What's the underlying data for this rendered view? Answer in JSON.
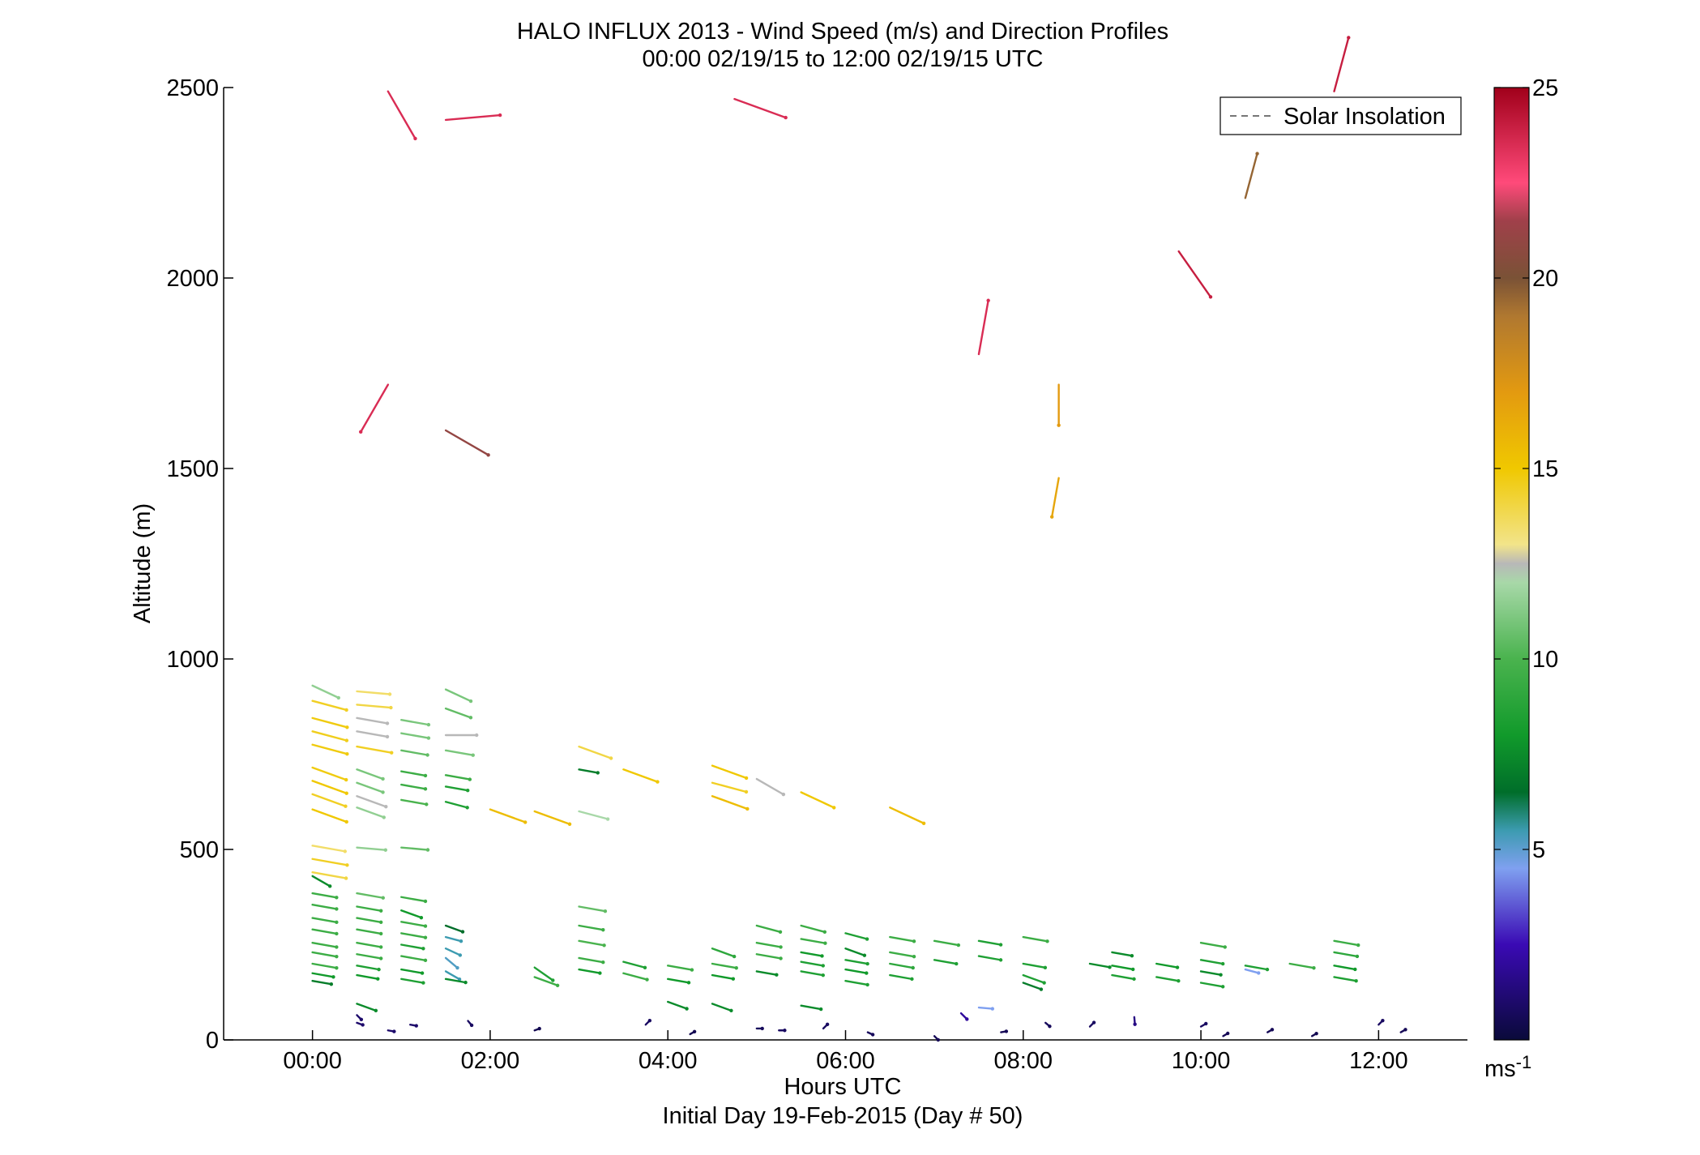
{
  "chart_data": {
    "type": "wind_barb_profile",
    "title": "HALO INFLUX 2013 - Wind Speed (m/s) and Direction Profiles",
    "subtitle": "00:00 02/19/15 to 12:00 02/19/15  UTC",
    "xlabel": "Hours UTC",
    "xlabel2": "Initial Day 19-Feb-2015 (Day # 50)",
    "ylabel": "Altitude (m)",
    "xlim": [
      -1,
      13
    ],
    "ylim": [
      0,
      2500
    ],
    "x_ticks": [
      0,
      2,
      4,
      6,
      8,
      10,
      12
    ],
    "x_tick_labels": [
      "00:00",
      "02:00",
      "04:00",
      "06:00",
      "08:00",
      "10:00",
      "12:00"
    ],
    "y_ticks": [
      0,
      500,
      1000,
      1500,
      2000,
      2500
    ],
    "y_tick_labels": [
      "0",
      "500",
      "1000",
      "1500",
      "2000",
      "2500"
    ],
    "legend": {
      "entries": [
        "Solar Insolation"
      ],
      "position": "top-right",
      "style": "dashed-gray"
    },
    "colorbar": {
      "min": 0,
      "max": 25,
      "ticks": [
        5,
        10,
        15,
        20,
        25
      ],
      "tick_labels": [
        "5",
        "10",
        "15",
        "20",
        "25"
      ],
      "unit_label": "ms",
      "unit_exp": "-1",
      "stops": [
        {
          "v": 0,
          "color": "#0a0a3a"
        },
        {
          "v": 2.5,
          "color": "#3a0ab4"
        },
        {
          "v": 4.5,
          "color": "#7fa0f0"
        },
        {
          "v": 5.5,
          "color": "#3c9bb0"
        },
        {
          "v": 6.5,
          "color": "#006e2a"
        },
        {
          "v": 8,
          "color": "#119a2b"
        },
        {
          "v": 10,
          "color": "#4ab34e"
        },
        {
          "v": 12,
          "color": "#a8d8a8"
        },
        {
          "v": 12.5,
          "color": "#b8b8b8"
        },
        {
          "v": 13,
          "color": "#f2e48a"
        },
        {
          "v": 15,
          "color": "#f0c800"
        },
        {
          "v": 17,
          "color": "#e39a10"
        },
        {
          "v": 19,
          "color": "#b07830"
        },
        {
          "v": 20,
          "color": "#7a5236"
        },
        {
          "v": 21.5,
          "color": "#a0404a"
        },
        {
          "v": 22.5,
          "color": "#ff4a7a"
        },
        {
          "v": 25,
          "color": "#a0001a"
        }
      ]
    },
    "arrow_spec": "each barb: [time_hours, altitude_m, speed_ms, direction_deg_toward]",
    "barbs": [
      [
        0,
        930,
        11.5,
        115
      ],
      [
        0,
        890,
        14.5,
        105
      ],
      [
        0,
        845,
        14.8,
        105
      ],
      [
        0,
        810,
        14.6,
        105
      ],
      [
        0,
        775,
        14.8,
        105
      ],
      [
        0,
        715,
        14.8,
        110
      ],
      [
        0,
        680,
        15,
        110
      ],
      [
        0,
        645,
        14.5,
        110
      ],
      [
        0,
        605,
        15,
        110
      ],
      [
        0,
        510,
        13.5,
        100
      ],
      [
        0,
        475,
        14.5,
        100
      ],
      [
        0,
        440,
        14,
        100
      ],
      [
        0,
        430,
        7.5,
        120
      ],
      [
        0,
        385,
        9.5,
        100
      ],
      [
        0,
        355,
        9.5,
        100
      ],
      [
        0,
        320,
        9.5,
        100
      ],
      [
        0,
        290,
        9.5,
        100
      ],
      [
        0,
        255,
        9.5,
        100
      ],
      [
        0,
        230,
        9.5,
        100
      ],
      [
        0,
        200,
        9.5,
        100
      ],
      [
        0,
        175,
        8,
        100
      ],
      [
        0,
        155,
        7,
        100
      ],
      [
        0.5,
        65,
        1,
        135
      ],
      [
        0.5,
        915,
        13.5,
        95
      ],
      [
        0.5,
        880,
        14,
        95
      ],
      [
        0.5,
        845,
        12.5,
        100
      ],
      [
        0.5,
        810,
        12.5,
        100
      ],
      [
        0.5,
        770,
        14.5,
        100
      ],
      [
        0.5,
        710,
        11,
        110
      ],
      [
        0.5,
        675,
        11,
        110
      ],
      [
        0.5,
        640,
        12.5,
        110
      ],
      [
        0.5,
        610,
        11.5,
        110
      ],
      [
        0.5,
        505,
        11.5,
        95
      ],
      [
        0.5,
        385,
        10.5,
        100
      ],
      [
        0.5,
        350,
        9.5,
        100
      ],
      [
        0.5,
        320,
        9.5,
        100
      ],
      [
        0.5,
        290,
        9.5,
        100
      ],
      [
        0.5,
        255,
        9.5,
        100
      ],
      [
        0.5,
        225,
        9.5,
        100
      ],
      [
        0.5,
        195,
        8.5,
        100
      ],
      [
        0.5,
        170,
        8,
        100
      ],
      [
        0.5,
        95,
        7.5,
        110
      ],
      [
        0.5,
        45,
        1,
        110
      ],
      [
        0.85,
        2490,
        23.5,
        150
      ],
      [
        0.85,
        1720,
        23.5,
        210
      ],
      [
        0.85,
        25,
        1,
        100
      ],
      [
        1,
        840,
        11,
        100
      ],
      [
        1,
        805,
        11,
        100
      ],
      [
        1,
        760,
        10.5,
        100
      ],
      [
        1,
        705,
        9.5,
        100
      ],
      [
        1,
        670,
        9.5,
        100
      ],
      [
        1,
        630,
        10,
        100
      ],
      [
        1,
        505,
        10.5,
        95
      ],
      [
        1,
        375,
        9.5,
        100
      ],
      [
        1,
        340,
        8,
        110
      ],
      [
        1,
        310,
        9.5,
        100
      ],
      [
        1,
        280,
        9.5,
        100
      ],
      [
        1,
        250,
        8.5,
        100
      ],
      [
        1,
        220,
        9.5,
        100
      ],
      [
        1,
        185,
        8,
        100
      ],
      [
        1,
        160,
        8.5,
        100
      ],
      [
        1.1,
        40,
        1,
        100
      ],
      [
        1.5,
        2415,
        23.5,
        85
      ],
      [
        1.5,
        1600,
        21,
        120
      ],
      [
        1.5,
        920,
        11,
        115
      ],
      [
        1.5,
        870,
        10.5,
        110
      ],
      [
        1.5,
        800,
        12.5,
        90
      ],
      [
        1.5,
        760,
        11,
        100
      ],
      [
        1.5,
        695,
        9.5,
        100
      ],
      [
        1.5,
        665,
        8.5,
        100
      ],
      [
        1.5,
        625,
        8.5,
        105
      ],
      [
        1.5,
        300,
        6.5,
        110
      ],
      [
        1.5,
        270,
        5.5,
        105
      ],
      [
        1.5,
        240,
        5.5,
        115
      ],
      [
        1.5,
        215,
        5.2,
        130
      ],
      [
        1.5,
        180,
        5.5,
        120
      ],
      [
        1.5,
        160,
        7.5,
        100
      ],
      [
        1.75,
        50,
        0.8,
        140
      ],
      [
        2,
        605,
        15.5,
        110
      ],
      [
        2.5,
        600,
        15.5,
        110
      ],
      [
        2.5,
        190,
        8.5,
        125
      ],
      [
        2.5,
        165,
        9.5,
        110
      ],
      [
        2.5,
        25,
        0.5,
        70
      ],
      [
        3,
        770,
        14,
        110
      ],
      [
        3,
        710,
        7,
        100
      ],
      [
        3,
        600,
        12,
        105
      ],
      [
        3,
        350,
        10.5,
        100
      ],
      [
        3,
        300,
        9.5,
        100
      ],
      [
        3,
        260,
        10,
        100
      ],
      [
        3,
        215,
        9.5,
        100
      ],
      [
        3,
        185,
        8,
        100
      ],
      [
        3.5,
        710,
        15,
        110
      ],
      [
        3.5,
        205,
        8.5,
        105
      ],
      [
        3.5,
        175,
        9.5,
        105
      ],
      [
        4,
        195,
        9.5,
        100
      ],
      [
        4,
        160,
        8,
        100
      ],
      [
        4,
        100,
        7.5,
        110
      ],
      [
        3.75,
        40,
        0.8,
        45
      ],
      [
        4.25,
        15,
        0.5,
        60
      ],
      [
        4.5,
        720,
        15,
        110
      ],
      [
        4.5,
        675,
        14.5,
        105
      ],
      [
        4.5,
        640,
        15.5,
        110
      ],
      [
        4.5,
        240,
        9,
        110
      ],
      [
        4.5,
        200,
        9.5,
        100
      ],
      [
        4.5,
        170,
        8,
        100
      ],
      [
        4.5,
        95,
        7.5,
        110
      ],
      [
        4.75,
        2470,
        23.5,
        110
      ],
      [
        5,
        685,
        12.5,
        120
      ],
      [
        5,
        300,
        9.5,
        105
      ],
      [
        5,
        255,
        9.5,
        100
      ],
      [
        5,
        225,
        9.5,
        100
      ],
      [
        5,
        180,
        7.5,
        100
      ],
      [
        5,
        30,
        0.7,
        90
      ],
      [
        5.5,
        650,
        15,
        115
      ],
      [
        5.5,
        300,
        9.5,
        105
      ],
      [
        5.5,
        265,
        9.5,
        100
      ],
      [
        5.5,
        230,
        8,
        100
      ],
      [
        5.5,
        205,
        8.5,
        100
      ],
      [
        5.5,
        180,
        8.5,
        100
      ],
      [
        5.5,
        90,
        7.5,
        100
      ],
      [
        5.25,
        25,
        0.8,
        90
      ],
      [
        6,
        280,
        8.5,
        105
      ],
      [
        6,
        240,
        7.5,
        110
      ],
      [
        6,
        210,
        8.5,
        100
      ],
      [
        6,
        185,
        8,
        100
      ],
      [
        6,
        155,
        8.5,
        100
      ],
      [
        5.75,
        30,
        0.8,
        45
      ],
      [
        6.5,
        610,
        15.5,
        115
      ],
      [
        6.5,
        270,
        9.5,
        100
      ],
      [
        6.5,
        230,
        9.5,
        100
      ],
      [
        6.5,
        200,
        9,
        100
      ],
      [
        6.5,
        170,
        8.5,
        100
      ],
      [
        6.25,
        20,
        0.7,
        115
      ],
      [
        7,
        260,
        9.5,
        100
      ],
      [
        7,
        210,
        8.5,
        100
      ],
      [
        7,
        10,
        0.6,
        135
      ],
      [
        7.3,
        70,
        2,
        135
      ],
      [
        7.5,
        1800,
        23.5,
        10
      ],
      [
        7.5,
        260,
        8.5,
        100
      ],
      [
        7.5,
        220,
        8.5,
        100
      ],
      [
        7.5,
        85,
        4.5,
        95
      ],
      [
        8,
        270,
        9.5,
        100
      ],
      [
        8,
        200,
        8.5,
        100
      ],
      [
        8,
        170,
        8.5,
        110
      ],
      [
        8,
        150,
        7,
        110
      ],
      [
        7.75,
        20,
        0.6,
        80
      ],
      [
        8.25,
        45,
        0.7,
        130
      ],
      [
        8.4,
        1720,
        17,
        180
      ],
      [
        8.4,
        1475,
        16.5,
        190
      ],
      [
        8.75,
        200,
        7.5,
        100
      ],
      [
        8.75,
        35,
        0.8,
        45
      ],
      [
        9,
        230,
        7.5,
        100
      ],
      [
        9,
        195,
        8,
        100
      ],
      [
        9,
        170,
        8.5,
        100
      ],
      [
        9.25,
        60,
        1.5,
        175
      ],
      [
        9.5,
        200,
        8,
        100
      ],
      [
        9.5,
        165,
        8.5,
        100
      ],
      [
        9.75,
        2070,
        24,
        145
      ],
      [
        10,
        255,
        9.5,
        100
      ],
      [
        10,
        210,
        8.5,
        100
      ],
      [
        10,
        180,
        7.5,
        100
      ],
      [
        10,
        150,
        8.5,
        100
      ],
      [
        10,
        35,
        0.8,
        60
      ],
      [
        10.25,
        10,
        0.6,
        60
      ],
      [
        10.5,
        2210,
        19.5,
        15
      ],
      [
        10.5,
        195,
        8.5,
        100
      ],
      [
        10.5,
        185,
        4.5,
        105
      ],
      [
        10.75,
        20,
        0.6,
        60
      ],
      [
        11,
        200,
        9.5,
        100
      ],
      [
        11.25,
        10,
        0.5,
        60
      ],
      [
        11.5,
        2490,
        24,
        15
      ],
      [
        11.5,
        260,
        9.5,
        100
      ],
      [
        11.5,
        230,
        9,
        100
      ],
      [
        11.5,
        195,
        8,
        100
      ],
      [
        11.5,
        165,
        8.5,
        100
      ],
      [
        12,
        40,
        0.8,
        45
      ],
      [
        12.25,
        20,
        0.6,
        60
      ]
    ]
  }
}
